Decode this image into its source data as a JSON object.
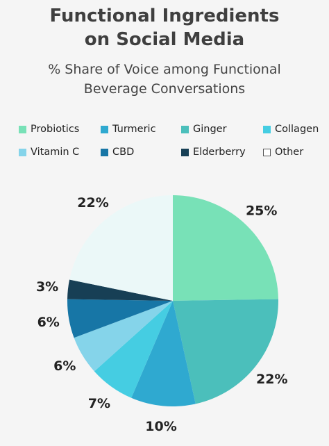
{
  "chart_data": {
    "type": "pie",
    "title_line1": "Functional Ingredients",
    "title_line2": "on Social Media",
    "subtitle_line1": "% Share of Voice among Functional",
    "subtitle_line2": "Beverage Conversations",
    "unit": "%",
    "slices": [
      {
        "name": "Probiotics",
        "value": 25,
        "label": "25%",
        "color": "#78e1b7"
      },
      {
        "name": "Ginger",
        "value": 22,
        "label": "22%",
        "color": "#4bbfbb"
      },
      {
        "name": "Turmeric",
        "value": 10,
        "label": "10%",
        "color": "#2fa9d0"
      },
      {
        "name": "Collagen",
        "value": 7,
        "label": "7%",
        "color": "#45cde2"
      },
      {
        "name": "Vitamin C",
        "value": 6,
        "label": "6%",
        "color": "#85d4ea"
      },
      {
        "name": "CBD",
        "value": 6,
        "label": "6%",
        "color": "#1776a6"
      },
      {
        "name": "Elderberry",
        "value": 3,
        "label": "3%",
        "color": "#173f55"
      },
      {
        "name": "Other",
        "value": 22,
        "label": "22%",
        "color": "#ebf8f8"
      }
    ],
    "legend": [
      {
        "name": "Probiotics",
        "color": "#78e1b7"
      },
      {
        "name": "Turmeric",
        "color": "#2fa9d0"
      },
      {
        "name": "Ginger",
        "color": "#4bbfbb"
      },
      {
        "name": "Collagen",
        "color": "#45cde2"
      },
      {
        "name": "Vitamin C",
        "color": "#85d4ea"
      },
      {
        "name": "CBD",
        "color": "#1776a6"
      },
      {
        "name": "Elderberry",
        "color": "#173f55"
      },
      {
        "name": "Other",
        "color": "#ffffff"
      }
    ],
    "legend_placement": "top"
  }
}
